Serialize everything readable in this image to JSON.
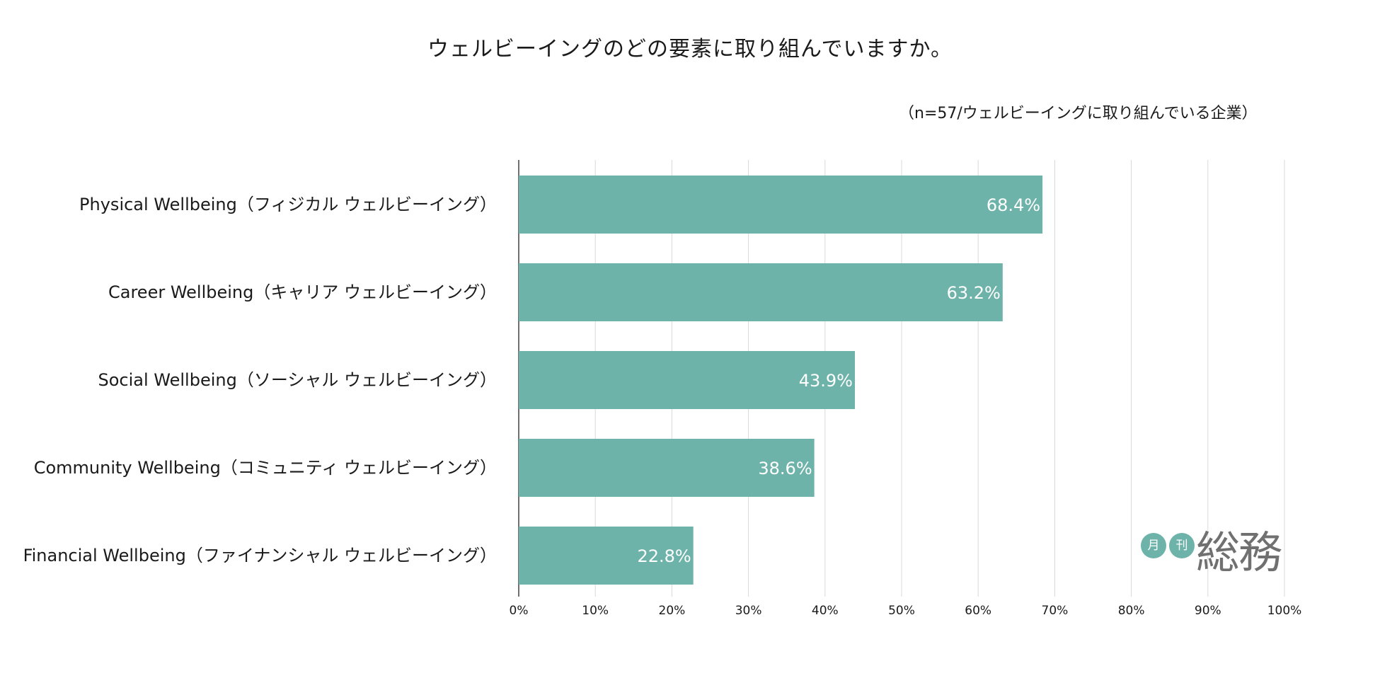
{
  "chart_data": {
    "type": "bar",
    "orientation": "horizontal",
    "title": "ウェルビーイングのどの要素に取り組んでいますか。",
    "subtitle": "（n=57/ウェルビーイングに取り組んでいる企業）",
    "categories": [
      "Physical Wellbeing（フィジカル ウェルビーイング）",
      "Career Wellbeing（キャリア ウェルビーイング）",
      "Social Wellbeing（ソーシャル ウェルビーイング）",
      "Community Wellbeing（コミュニティ ウェルビーイング）",
      "Financial Wellbeing（ファイナンシャル ウェルビーイング）"
    ],
    "values": [
      68.4,
      63.2,
      43.9,
      38.6,
      22.8
    ],
    "value_labels": [
      "68.4%",
      "63.2%",
      "43.9%",
      "38.6%",
      "22.8%"
    ],
    "xlim": [
      0,
      100
    ],
    "x_ticks": [
      0,
      10,
      20,
      30,
      40,
      50,
      60,
      70,
      80,
      90,
      100
    ],
    "x_tick_labels": [
      "0%",
      "10%",
      "20%",
      "30%",
      "40%",
      "50%",
      "60%",
      "70%",
      "80%",
      "90%",
      "100%"
    ],
    "grid": true,
    "bar_color": "#6db3aa"
  },
  "logo": {
    "circle_1": "月",
    "circle_2": "刊",
    "main": "総務",
    "circle_color": "#6db3aa",
    "text_color": "#707070"
  }
}
